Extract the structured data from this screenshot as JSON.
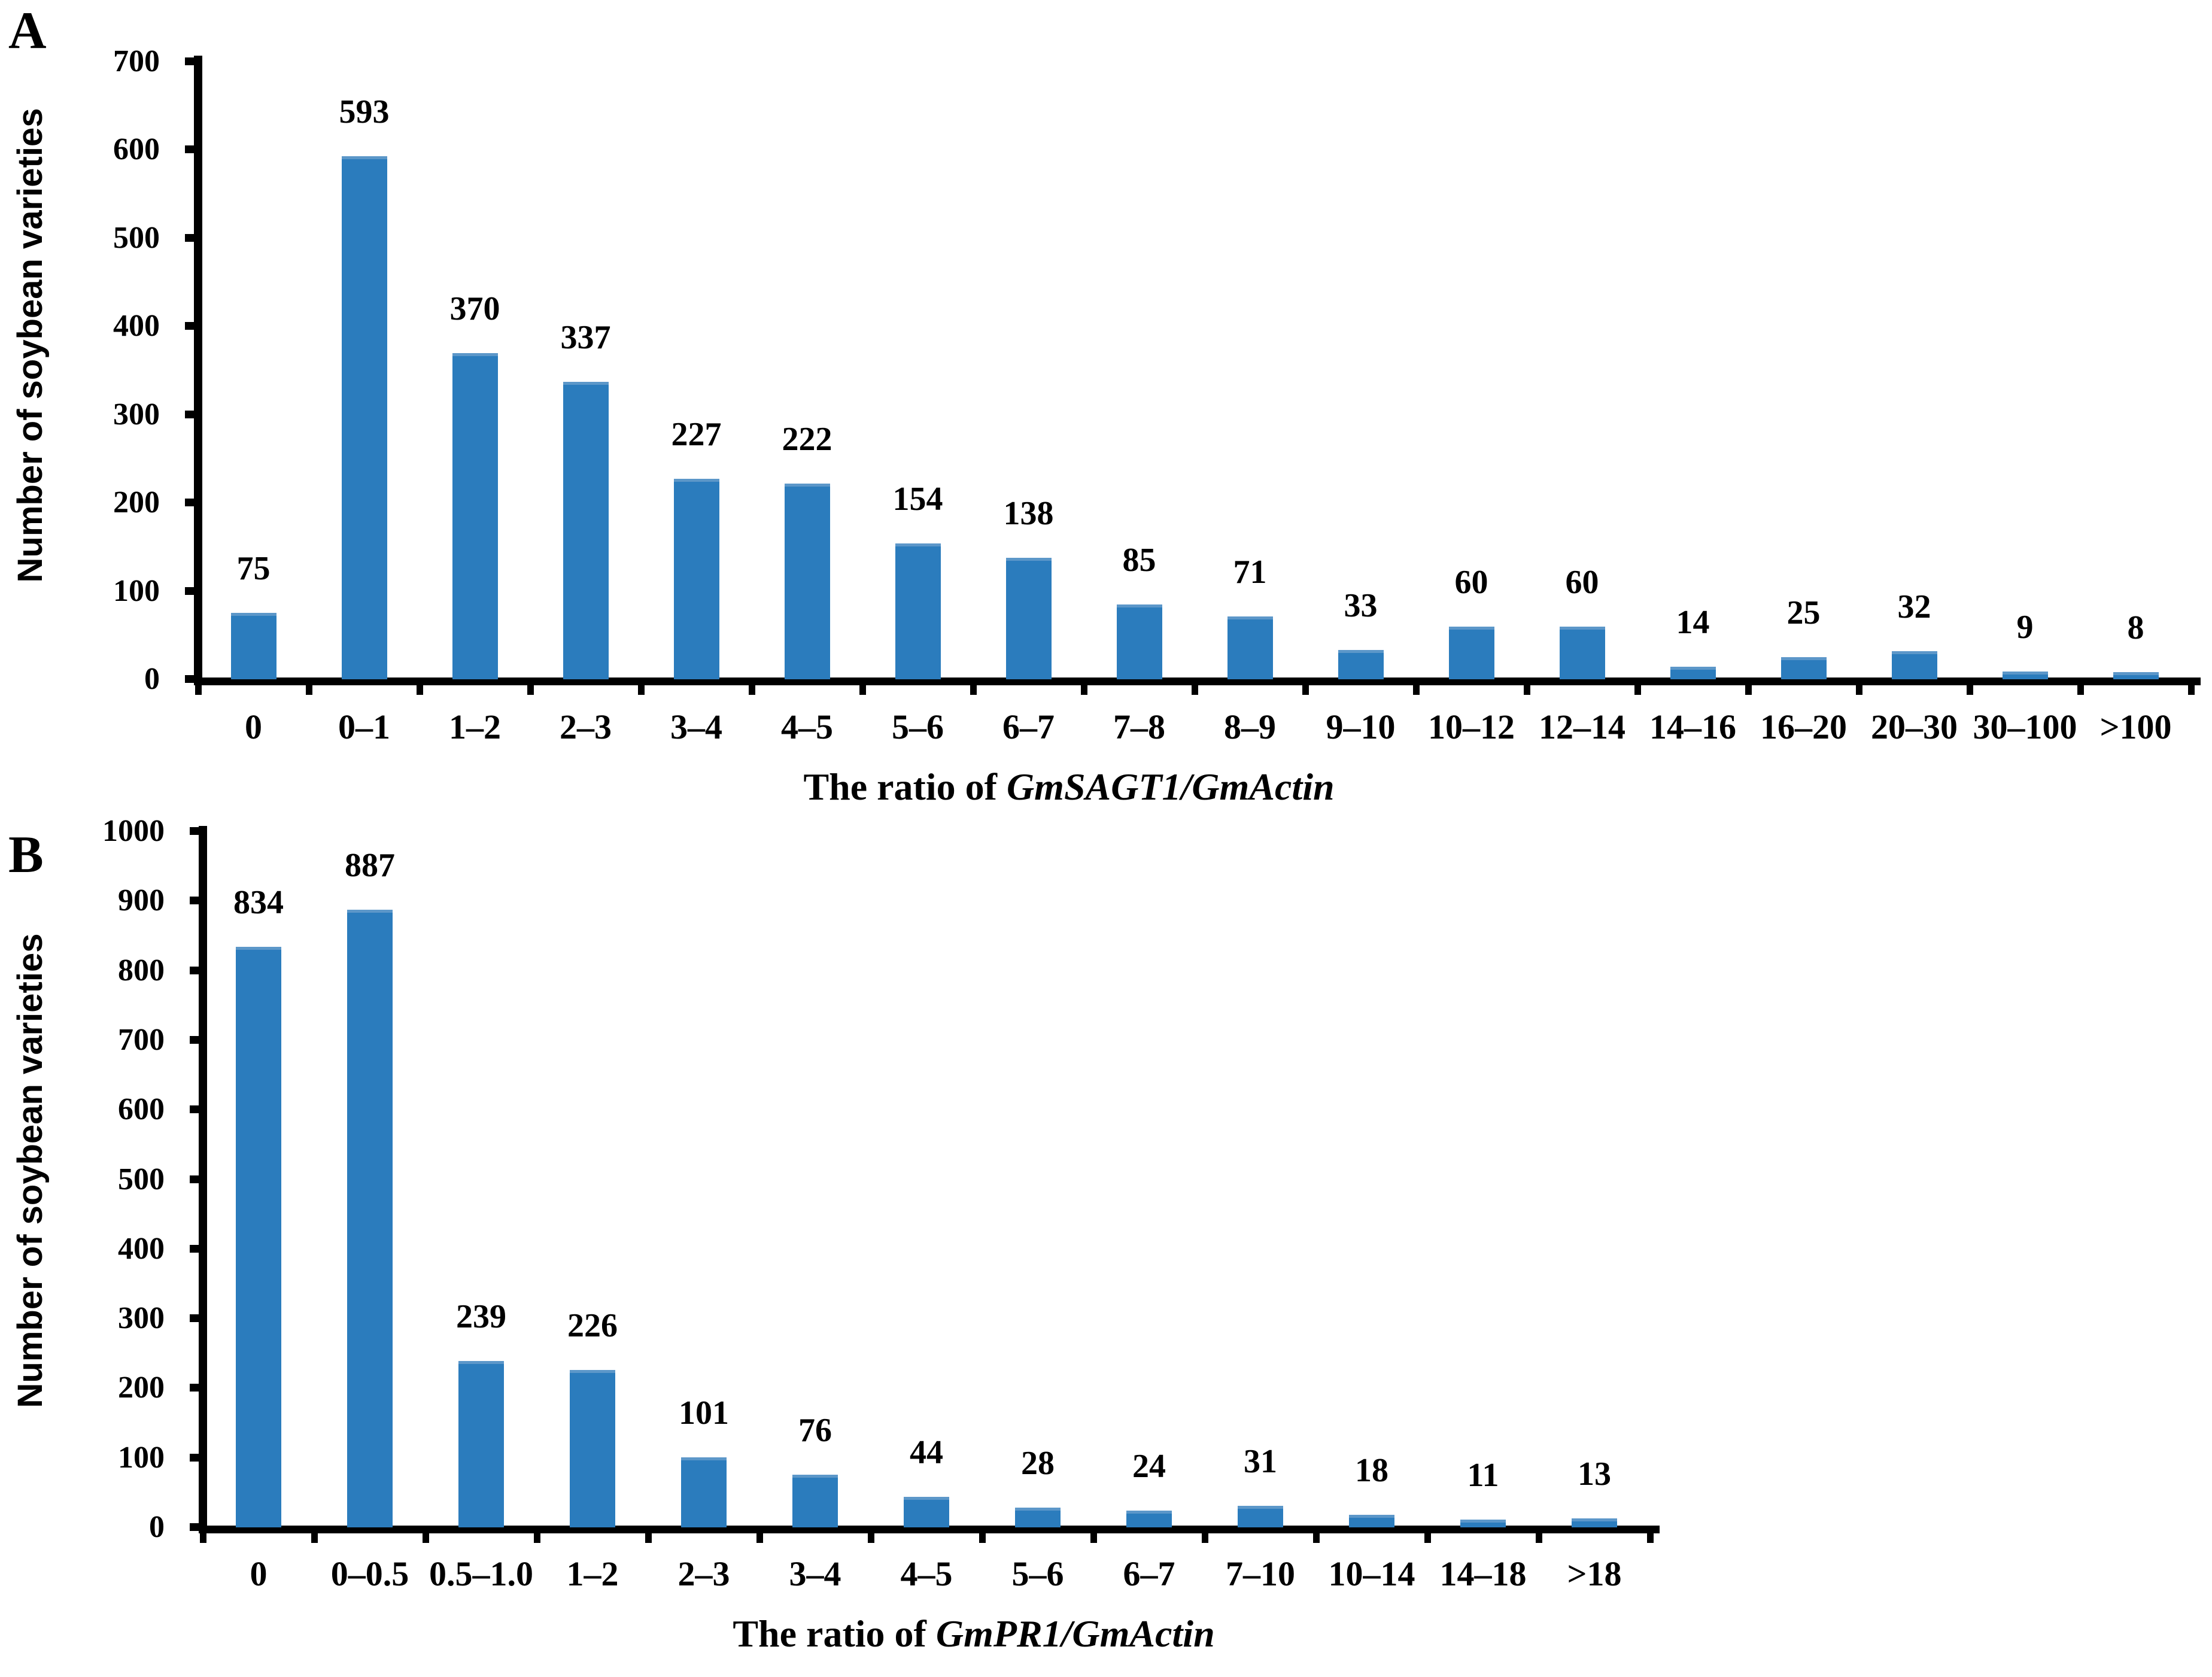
{
  "figure": {
    "background": "#ffffff",
    "bar_color": "#2B7CBD",
    "bar_top_edge": "#5C97C9",
    "axis_color": "#000000",
    "text_color": "#000000"
  },
  "chart_data": [
    {
      "type": "bar",
      "panel_label": "A",
      "title": "",
      "ylabel": "Number of soybean varieties",
      "xlabel_prefix": "The ratio of ",
      "xlabel_gene": "GmSAGT1/GmActin",
      "categories": [
        "0",
        "0–1",
        "1–2",
        "2–3",
        "3–4",
        "4–5",
        "5–6",
        "6–7",
        "7–8",
        "8–9",
        "9–10",
        "10–12",
        "12–14",
        "14–16",
        "16–20",
        "20–30",
        "30–100",
        ">100"
      ],
      "values": [
        75,
        593,
        370,
        337,
        227,
        222,
        154,
        138,
        85,
        71,
        33,
        60,
        60,
        14,
        25,
        32,
        9,
        8
      ],
      "ylim": [
        0,
        700
      ],
      "yticks": [
        0,
        100,
        200,
        300,
        400,
        500,
        600,
        700
      ],
      "grid": false,
      "legend_position": "none"
    },
    {
      "type": "bar",
      "panel_label": "B",
      "title": "",
      "ylabel": "Number of soybean varieties",
      "xlabel_prefix": "The ratio of ",
      "xlabel_gene": "GmPR1/GmActin",
      "categories": [
        "0",
        "0–0.5",
        "0.5–1.0",
        "1–2",
        "2–3",
        "3–4",
        "4–5",
        "5–6",
        "6–7",
        "7–10",
        "10–14",
        "14–18",
        ">18"
      ],
      "values": [
        834,
        887,
        239,
        226,
        101,
        76,
        44,
        28,
        24,
        31,
        18,
        11,
        13
      ],
      "ylim": [
        0,
        1000
      ],
      "yticks": [
        0,
        100,
        200,
        300,
        400,
        500,
        600,
        700,
        800,
        900,
        1000
      ],
      "grid": false,
      "legend_position": "none"
    }
  ]
}
